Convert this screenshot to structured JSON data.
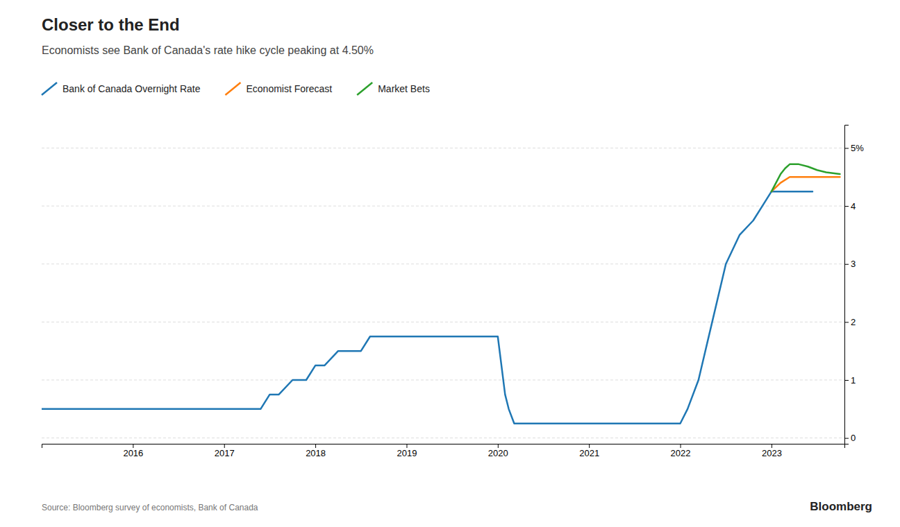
{
  "chart_data": {
    "type": "line",
    "title": "Closer to the End",
    "subtitle": "Economists see Bank of Canada's rate hike cycle peaking at 4.50%",
    "annotations": [
      "Source: Bloomberg survey of economists, Bank of Canada",
      "Bloomberg"
    ],
    "series": [
      {
        "name": "Bank of Canada Overnight Rate",
        "x": [
          2015.0,
          2015.5,
          2016.0,
          2016.5,
          2017.0,
          2017.4,
          2017.5,
          2017.6,
          2017.75,
          2017.9,
          2018.0,
          2018.1,
          2018.25,
          2018.5,
          2018.6,
          2018.75,
          2019.0,
          2019.5,
          2019.75,
          2019.9,
          2020.0,
          2020.08,
          2020.12,
          2020.18,
          2020.25,
          2020.5,
          2021.0,
          2021.5,
          2022.0,
          2022.08,
          2022.2,
          2022.35,
          2022.5,
          2022.65,
          2022.8,
          2022.9,
          2023.0,
          2023.1,
          2023.2,
          2023.3,
          2023.45
        ],
        "values": [
          0.5,
          0.5,
          0.5,
          0.5,
          0.5,
          0.5,
          0.75,
          0.75,
          1.0,
          1.0,
          1.25,
          1.25,
          1.5,
          1.5,
          1.75,
          1.75,
          1.75,
          1.75,
          1.75,
          1.75,
          1.75,
          0.75,
          0.5,
          0.25,
          0.25,
          0.25,
          0.25,
          0.25,
          0.25,
          0.5,
          1.0,
          2.0,
          3.0,
          3.5,
          3.75,
          4.0,
          4.25,
          4.25,
          4.25,
          4.25,
          4.25
        ]
      },
      {
        "name": "Economist Forecast",
        "x": [
          2023.0,
          2023.1,
          2023.2,
          2023.3,
          2023.45,
          2023.6,
          2023.75
        ],
        "values": [
          4.25,
          4.4,
          4.5,
          4.5,
          4.5,
          4.5,
          4.5
        ]
      },
      {
        "name": "Market Bets",
        "x": [
          2023.0,
          2023.05,
          2023.1,
          2023.15,
          2023.2,
          2023.3,
          2023.4,
          2023.5,
          2023.6,
          2023.75
        ],
        "values": [
          4.25,
          4.4,
          4.55,
          4.65,
          4.72,
          4.72,
          4.68,
          4.62,
          4.58,
          4.55
        ]
      }
    ],
    "xlim": [
      2015.0,
      2023.8
    ],
    "ylim": [
      -0.1,
      5.4
    ],
    "xticks": [
      2016,
      2017,
      2018,
      2019,
      2020,
      2021,
      2022,
      2023
    ],
    "yticks": [
      0,
      1,
      2,
      3,
      4,
      {
        "value": 5,
        "label": "5%"
      }
    ],
    "grid": true,
    "legend": "top"
  }
}
